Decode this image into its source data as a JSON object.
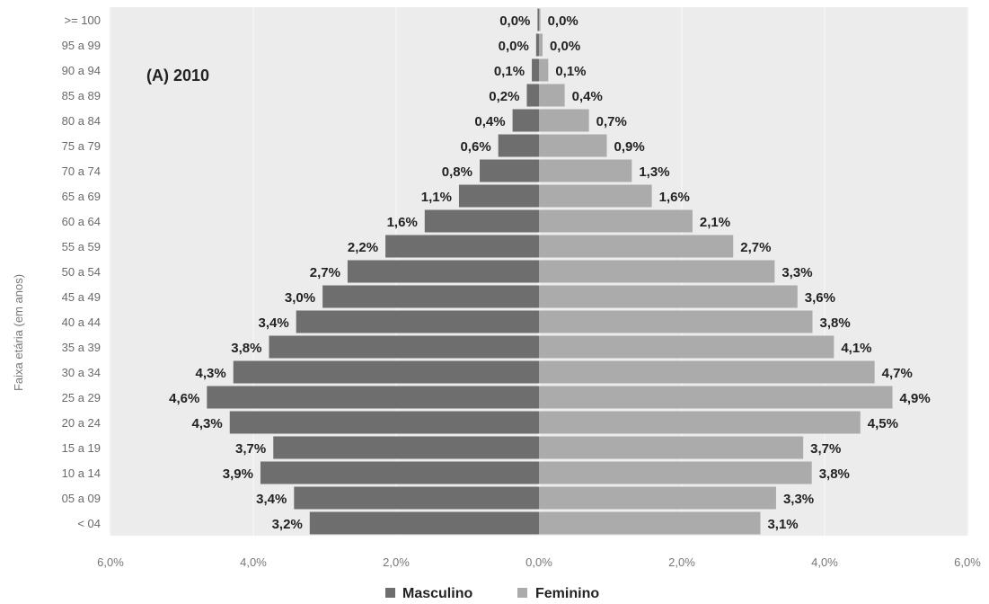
{
  "chart_data": {
    "type": "bar",
    "orientation": "horizontal-population-pyramid",
    "annotation": "(A) 2010",
    "ylabel": "Faixa etária (em anos)",
    "xlim": [
      -6,
      6
    ],
    "x_ticks": [
      -6,
      -4,
      -2,
      0,
      2,
      4,
      6
    ],
    "x_tick_labels": [
      "6,0%",
      "4,0%",
      "2,0%",
      "0,0%",
      "2,0%",
      "4,0%",
      "6,0%"
    ],
    "grid": true,
    "legend_position": "bottom",
    "categories": [
      ">= 100",
      "95 a 99",
      "90 a 94",
      "85 a 89",
      "80 a 84",
      "75 a 79",
      "70 a 74",
      "65 a 69",
      "60 a 64",
      "55 a 59",
      "50 a 54",
      "45 a 49",
      "40 a 44",
      "35 a 39",
      "30 a 34",
      "25 a 29",
      "20 a 24",
      "15 a 19",
      "10 a 14",
      "05 a 09",
      "< 04"
    ],
    "series": [
      {
        "name": "Masculino",
        "color": "#6e6e6e",
        "values": [
          0.02,
          0.04,
          0.1,
          0.17,
          0.37,
          0.57,
          0.83,
          1.12,
          1.6,
          2.15,
          2.68,
          3.03,
          3.4,
          3.78,
          4.28,
          4.65,
          4.33,
          3.72,
          3.9,
          3.43,
          3.21
        ],
        "labels": [
          "0,0%",
          "0,0%",
          "0,1%",
          "0,2%",
          "0,4%",
          "0,6%",
          "0,8%",
          "1,1%",
          "1,6%",
          "2,2%",
          "2,7%",
          "3,0%",
          "3,4%",
          "3,8%",
          "4,3%",
          "4,6%",
          "4,3%",
          "3,7%",
          "3,9%",
          "3,4%",
          "3,2%"
        ]
      },
      {
        "name": "Feminino",
        "color": "#ababab",
        "values": [
          0.02,
          0.05,
          0.13,
          0.36,
          0.7,
          0.95,
          1.3,
          1.58,
          2.15,
          2.72,
          3.3,
          3.62,
          3.83,
          4.13,
          4.7,
          4.95,
          4.5,
          3.7,
          3.82,
          3.32,
          3.1
        ],
        "labels": [
          "0,0%",
          "0,0%",
          "0,1%",
          "0,4%",
          "0,7%",
          "0,9%",
          "1,3%",
          "1,6%",
          "2,1%",
          "2,7%",
          "3,3%",
          "3,6%",
          "3,8%",
          "4,1%",
          "4,7%",
          "4,9%",
          "4,5%",
          "3,7%",
          "3,8%",
          "3,3%",
          "3,1%"
        ]
      }
    ]
  }
}
